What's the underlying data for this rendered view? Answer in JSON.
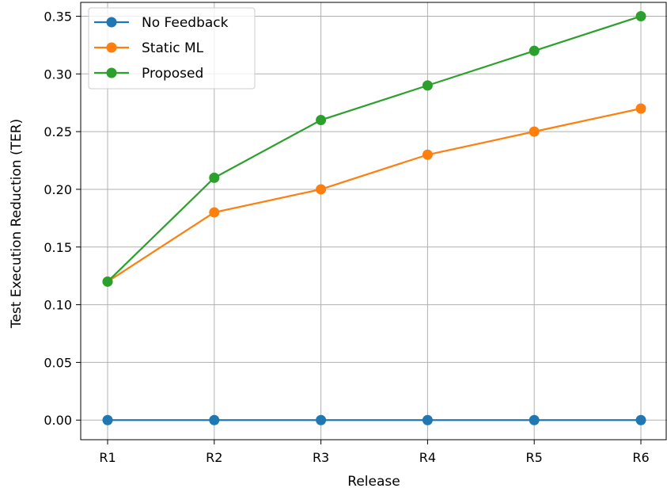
{
  "chart_data": {
    "type": "line",
    "title": "",
    "xlabel": "Release",
    "ylabel": "Test Execution Reduction (TER)",
    "categories": [
      "R1",
      "R2",
      "R3",
      "R4",
      "R5",
      "R6"
    ],
    "ylim": [
      -0.017,
      0.362
    ],
    "yticks": [
      "0.00",
      "0.05",
      "0.10",
      "0.15",
      "0.20",
      "0.25",
      "0.30",
      "0.35"
    ],
    "grid": true,
    "legend_position": "top-left",
    "series": [
      {
        "name": "No Feedback",
        "color": "#1f77b4",
        "values": [
          0,
          0,
          0,
          0,
          0,
          0
        ]
      },
      {
        "name": "Static ML",
        "color": "#ff7f0e",
        "values": [
          0.12,
          0.18,
          0.2,
          0.23,
          0.25,
          0.27
        ]
      },
      {
        "name": "Proposed",
        "color": "#2ca02c",
        "values": [
          0.12,
          0.21,
          0.26,
          0.29,
          0.32,
          0.35
        ]
      }
    ]
  }
}
